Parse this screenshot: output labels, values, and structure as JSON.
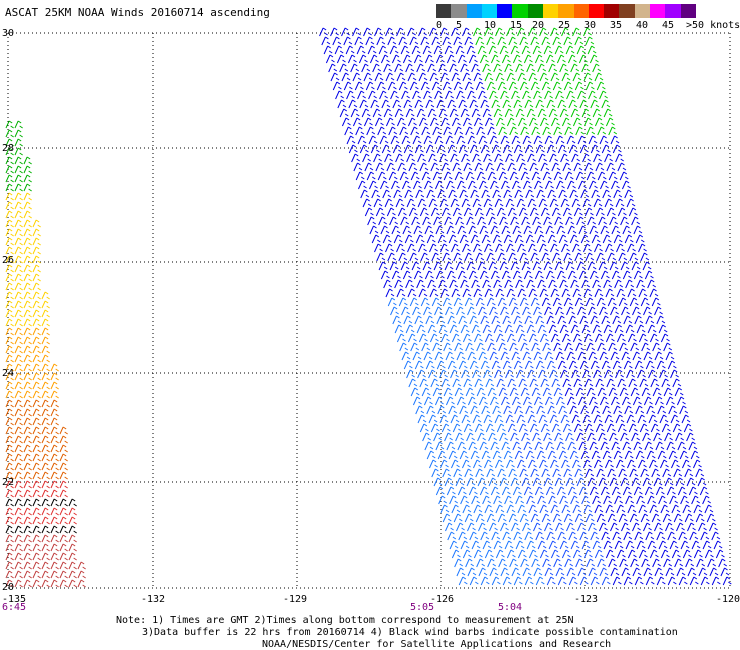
{
  "title": "ASCAT 25KM NOAA Winds 20160714 ascending",
  "legend": {
    "colors": [
      "#3a3a3a",
      "#8c8c8c",
      "#00a0ff",
      "#00d2ff",
      "#0000ff",
      "#00d200",
      "#008c00",
      "#ffd200",
      "#ffa000",
      "#ff6400",
      "#ff0000",
      "#a00000",
      "#804020",
      "#d2b48c",
      "#ff00ff",
      "#a000ff",
      "#600080"
    ],
    "labels": [
      "0",
      "5",
      "10",
      "15",
      "20",
      "25",
      "30",
      "35",
      "40",
      "45",
      ">50 knots"
    ]
  },
  "axes": {
    "lon_labels": [
      "-135",
      "-132",
      "-129",
      "-126",
      "-123",
      "-120"
    ],
    "lat_labels": [
      "30",
      "28",
      "26",
      "24",
      "22",
      "20"
    ]
  },
  "times": [
    "6:45",
    "5:05",
    "5:04"
  ],
  "notes": [
    "Note: 1) Times are GMT 2)Times along bottom correspond to measurement at 25N",
    "3)Data buffer is 22 hrs from 20160714 4) Black wind barbs indicate possible contamination",
    "NOAA/NESDIS/Center for Satellite Applications and Research"
  ]
}
